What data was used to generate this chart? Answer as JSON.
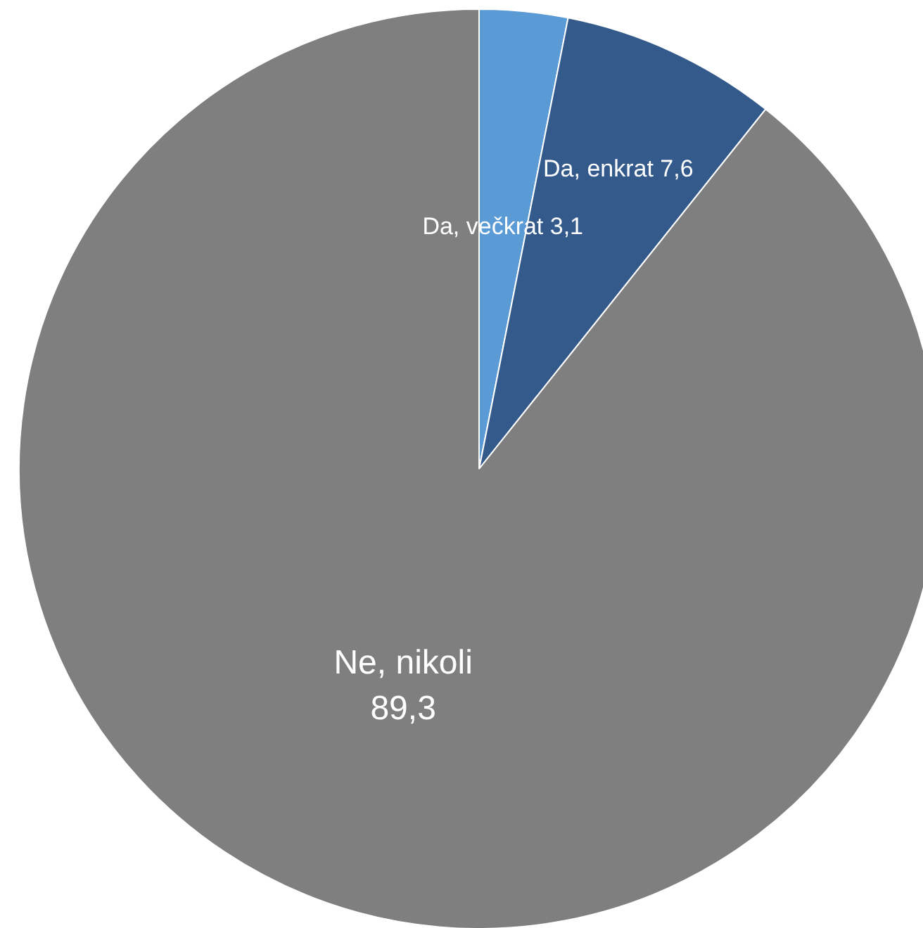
{
  "chart_data": {
    "type": "pie",
    "categories": [
      "Da, večkrat",
      "Da, enkrat",
      "Ne, nikoli"
    ],
    "values": [
      3.1,
      7.6,
      89.3
    ],
    "value_labels": [
      "3,1",
      "7,6",
      "89,3"
    ],
    "colors": [
      "#5b9bd5",
      "#335a8a",
      "#7f7f7f"
    ]
  }
}
